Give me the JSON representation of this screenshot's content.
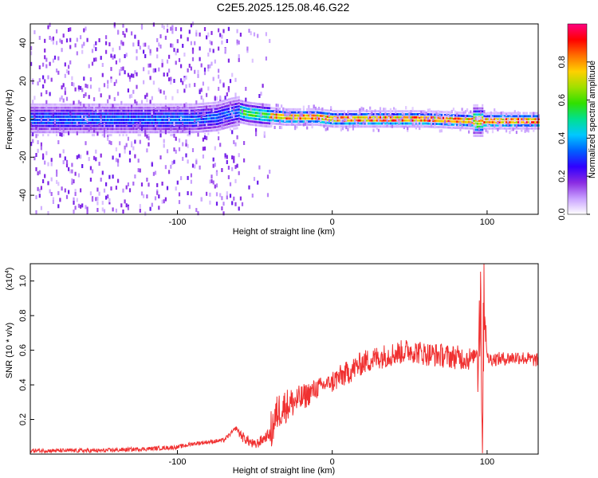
{
  "title": "C2E5.2025.125.08.46.G22",
  "chart_data": [
    {
      "type": "heatmap",
      "xlabel": "Height of straight line (km)",
      "ylabel": "Frequency (Hz)",
      "xlim": [
        -195,
        133
      ],
      "ylim": [
        -50,
        50
      ],
      "xticks": [
        -100,
        0,
        100
      ],
      "yticks": [
        -40,
        -20,
        0,
        20,
        40
      ],
      "colorbar": {
        "label": "Normalized spectral amplitude",
        "range": [
          0,
          1
        ],
        "ticks": [
          "0.0",
          "0.2",
          "0.4",
          "0.6",
          "0.8"
        ],
        "colors": [
          "#ffffff",
          "#c8a0ff",
          "#8a2be2",
          "#3000ff",
          "#0060ff",
          "#00c8ff",
          "#00e090",
          "#30e000",
          "#a0e000",
          "#ffd000",
          "#ff7000",
          "#ff0000",
          "#ff0080"
        ]
      },
      "ridge": {
        "x": [
          -195,
          -120,
          -90,
          -75,
          -66,
          -60,
          -55,
          -45,
          -30,
          -10,
          0,
          20,
          60,
          90,
          95,
          100,
          133
        ],
        "y": [
          0,
          0,
          0,
          1,
          3,
          4,
          3,
          2,
          1,
          1,
          0,
          0,
          0,
          -1,
          -1,
          -1,
          -1
        ]
      }
    },
    {
      "type": "line",
      "xlabel": "Height of straight line (km)",
      "ylabel": "SNR (10 * v/v)",
      "multiplier": "(x10",
      "multiplier_exp": "4",
      "multiplier_close": ")",
      "xlim": [
        -195,
        133
      ],
      "ylim": [
        0,
        1.1
      ],
      "xticks": [
        -100,
        0,
        100
      ],
      "yticks": [
        "0.2",
        "0.4",
        "0.6",
        "0.8",
        "1.0"
      ],
      "color": "#f03030",
      "series": [
        {
          "x": [
            -195,
            -150,
            -120,
            -100,
            -90,
            -80,
            -70,
            -62,
            -58,
            -50,
            -40,
            -35,
            -30,
            -20,
            -10,
            0,
            10,
            20,
            30,
            40,
            50,
            60,
            70,
            80,
            90,
            94,
            96,
            97,
            98,
            100,
            110,
            120,
            133
          ],
          "y": [
            0.02,
            0.02,
            0.03,
            0.04,
            0.06,
            0.07,
            0.08,
            0.15,
            0.1,
            0.05,
            0.12,
            0.25,
            0.28,
            0.32,
            0.38,
            0.42,
            0.47,
            0.53,
            0.56,
            0.58,
            0.6,
            0.58,
            0.57,
            0.56,
            0.55,
            0.6,
            0.95,
            0.03,
            1.05,
            0.55,
            0.55,
            0.56,
            0.54
          ]
        }
      ]
    }
  ]
}
